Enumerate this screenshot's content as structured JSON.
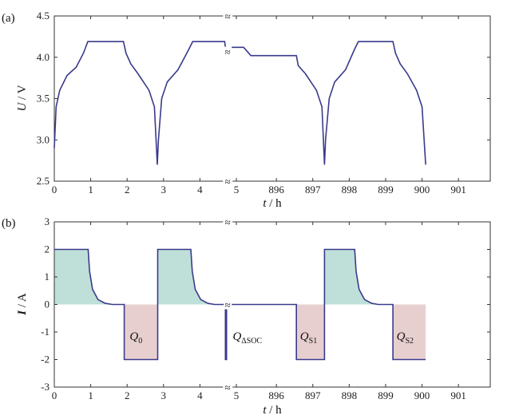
{
  "chart_data": [
    {
      "type": "line",
      "panel_label": "(a)",
      "ylabel": {
        "var": "U",
        "unit": " / V"
      },
      "xlabel": {
        "var": "t",
        "unit": " / h"
      },
      "ylim": [
        2.5,
        4.5
      ],
      "y_ticks": [
        "2.5",
        "3.0",
        "3.5",
        "4.0",
        "4.5"
      ],
      "x_ticks": [
        "0",
        "1",
        "2",
        "3",
        "4",
        "5",
        "896",
        "897",
        "898",
        "899",
        "900",
        "901"
      ],
      "axis_break": "≈",
      "line_color": "#3a3a8c",
      "series": [
        {
          "values": [
            [
              0.0,
              2.9
            ],
            [
              0.05,
              3.4
            ],
            [
              0.15,
              3.6
            ],
            [
              0.35,
              3.78
            ],
            [
              0.6,
              3.88
            ],
            [
              0.8,
              4.05
            ],
            [
              0.92,
              4.19
            ],
            [
              1.9,
              4.19
            ],
            [
              1.97,
              4.05
            ],
            [
              2.1,
              3.92
            ],
            [
              2.3,
              3.8
            ],
            [
              2.6,
              3.6
            ],
            [
              2.75,
              3.4
            ],
            [
              2.83,
              2.7
            ],
            [
              2.86,
              3.0
            ],
            [
              2.95,
              3.5
            ],
            [
              3.1,
              3.7
            ],
            [
              3.4,
              3.85
            ],
            [
              3.7,
              4.1
            ],
            [
              3.8,
              4.19
            ],
            [
              4.68,
              4.19
            ],
            [
              4.7,
              4.12
            ],
            [
              5.2,
              4.12
            ],
            [
              895.3,
              4.02
            ],
            [
              896.55,
              4.02
            ],
            [
              896.6,
              3.9
            ],
            [
              896.8,
              3.8
            ],
            [
              897.1,
              3.6
            ],
            [
              897.25,
              3.4
            ],
            [
              897.32,
              2.7
            ],
            [
              897.35,
              3.0
            ],
            [
              897.45,
              3.5
            ],
            [
              897.6,
              3.7
            ],
            [
              897.9,
              3.85
            ],
            [
              898.15,
              4.1
            ],
            [
              898.25,
              4.19
            ],
            [
              899.2,
              4.19
            ],
            [
              899.27,
              4.05
            ],
            [
              899.4,
              3.92
            ],
            [
              899.6,
              3.8
            ],
            [
              899.85,
              3.6
            ],
            [
              900.0,
              3.4
            ],
            [
              900.1,
              2.7
            ]
          ]
        }
      ]
    },
    {
      "type": "line",
      "panel_label": "(b)",
      "ylabel": {
        "var": "I",
        "unit": " / A"
      },
      "xlabel": {
        "var": "t",
        "unit": " / h"
      },
      "ylim": [
        -3,
        3
      ],
      "y_ticks": [
        "-3",
        "-2",
        "-1",
        "0",
        "1",
        "2",
        "3"
      ],
      "x_ticks": [
        "0",
        "1",
        "2",
        "3",
        "4",
        "5",
        "896",
        "897",
        "898",
        "899",
        "900",
        "901"
      ],
      "axis_break": "≈",
      "line_color": "#3a3a8c",
      "fill_positive": "#bfe0d8",
      "fill_negative": "#e8cfcf",
      "annotations": [
        {
          "base": "Q",
          "sub": "0",
          "x": 2.07,
          "y": -1.15
        },
        {
          "base": "Q",
          "sub": "ΔSOC",
          "x": 4.9,
          "y": -1.15
        },
        {
          "base": "Q",
          "sub": "S1",
          "x": 896.65,
          "y": -1.15
        },
        {
          "base": "Q",
          "sub": "S2",
          "x": 899.3,
          "y": -1.15
        }
      ],
      "series": [
        {
          "values": [
            [
              0.0,
              2.0
            ],
            [
              0.93,
              2.0
            ],
            [
              0.97,
              1.2
            ],
            [
              1.05,
              0.55
            ],
            [
              1.2,
              0.18
            ],
            [
              1.4,
              0.04
            ],
            [
              1.6,
              0.0
            ],
            [
              1.92,
              0.0
            ],
            [
              1.92,
              -2.0
            ],
            [
              2.84,
              -2.0
            ],
            [
              2.84,
              2.0
            ],
            [
              3.75,
              2.0
            ],
            [
              3.79,
              1.2
            ],
            [
              3.87,
              0.55
            ],
            [
              4.02,
              0.18
            ],
            [
              4.22,
              0.04
            ],
            [
              4.4,
              0.0
            ],
            [
              4.7,
              0.0
            ],
            [
              4.7,
              -2.0
            ],
            [
              4.73,
              -2.0
            ],
            [
              4.73,
              0.0
            ],
            [
              5.2,
              0.0
            ],
            [
              895.3,
              0.0
            ],
            [
              896.55,
              0.0
            ],
            [
              896.55,
              -2.0
            ],
            [
              897.32,
              -2.0
            ],
            [
              897.32,
              2.0
            ],
            [
              898.15,
              2.0
            ],
            [
              898.19,
              1.2
            ],
            [
              898.27,
              0.55
            ],
            [
              898.42,
              0.18
            ],
            [
              898.62,
              0.04
            ],
            [
              898.8,
              0.0
            ],
            [
              899.2,
              0.0
            ],
            [
              899.2,
              -2.0
            ],
            [
              900.1,
              -2.0
            ]
          ]
        }
      ]
    }
  ]
}
